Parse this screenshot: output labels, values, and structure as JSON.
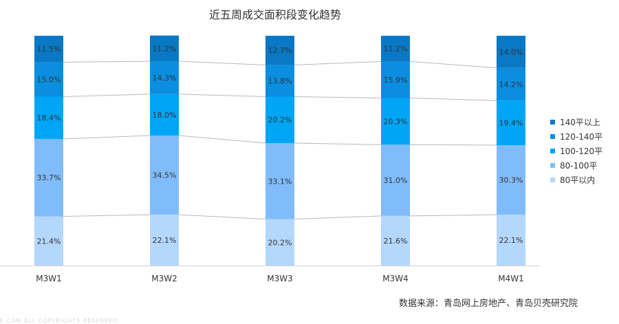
{
  "title": "近五周成交面积段变化趋势",
  "source": "数据来源：青岛网上房地产、青岛贝壳研究院",
  "watermark": "E.COM ALL COPYRIGHTS RESERVED",
  "chart_data": {
    "type": "bar",
    "stacked": true,
    "percent": true,
    "title": "近五周成交面积段变化趋势",
    "categories": [
      "M3W1",
      "M3W2",
      "M3W3",
      "M3W4",
      "M4W1"
    ],
    "series": [
      {
        "name": "80平以内",
        "color": "#b4d7fc",
        "values": [
          21.4,
          22.1,
          20.2,
          21.6,
          22.1
        ],
        "labels": [
          "21.4%",
          "22.1%",
          "20.2%",
          "21.6%",
          "22.1%"
        ]
      },
      {
        "name": "80-100平",
        "color": "#80bcfa",
        "values": [
          33.7,
          34.5,
          33.1,
          31.0,
          30.3
        ],
        "labels": [
          "33.7%",
          "34.5%",
          "33.1%",
          "31.0%",
          "30.3%"
        ]
      },
      {
        "name": "100-120平",
        "color": "#00a6f5",
        "values": [
          18.4,
          18.0,
          20.2,
          20.3,
          19.4
        ],
        "labels": [
          "18.4%",
          "18.0%",
          "20.2%",
          "20.3%",
          "19.4%"
        ]
      },
      {
        "name": "120-140平",
        "color": "#0b8ee0",
        "values": [
          15.0,
          14.3,
          13.8,
          15.9,
          14.2
        ],
        "labels": [
          "15.0%",
          "14.3%",
          "13.8%",
          "15.9%",
          "14.2%"
        ]
      },
      {
        "name": "140平以上",
        "color": "#0a78c4",
        "values": [
          11.5,
          11.2,
          12.7,
          11.2,
          14.0
        ],
        "labels": [
          "11.5%",
          "11.2%",
          "12.7%",
          "11.2%",
          "14.0%"
        ]
      }
    ],
    "ylim": [
      0,
      100
    ],
    "legend_position": "right",
    "connector_lines": true,
    "grid": false
  }
}
